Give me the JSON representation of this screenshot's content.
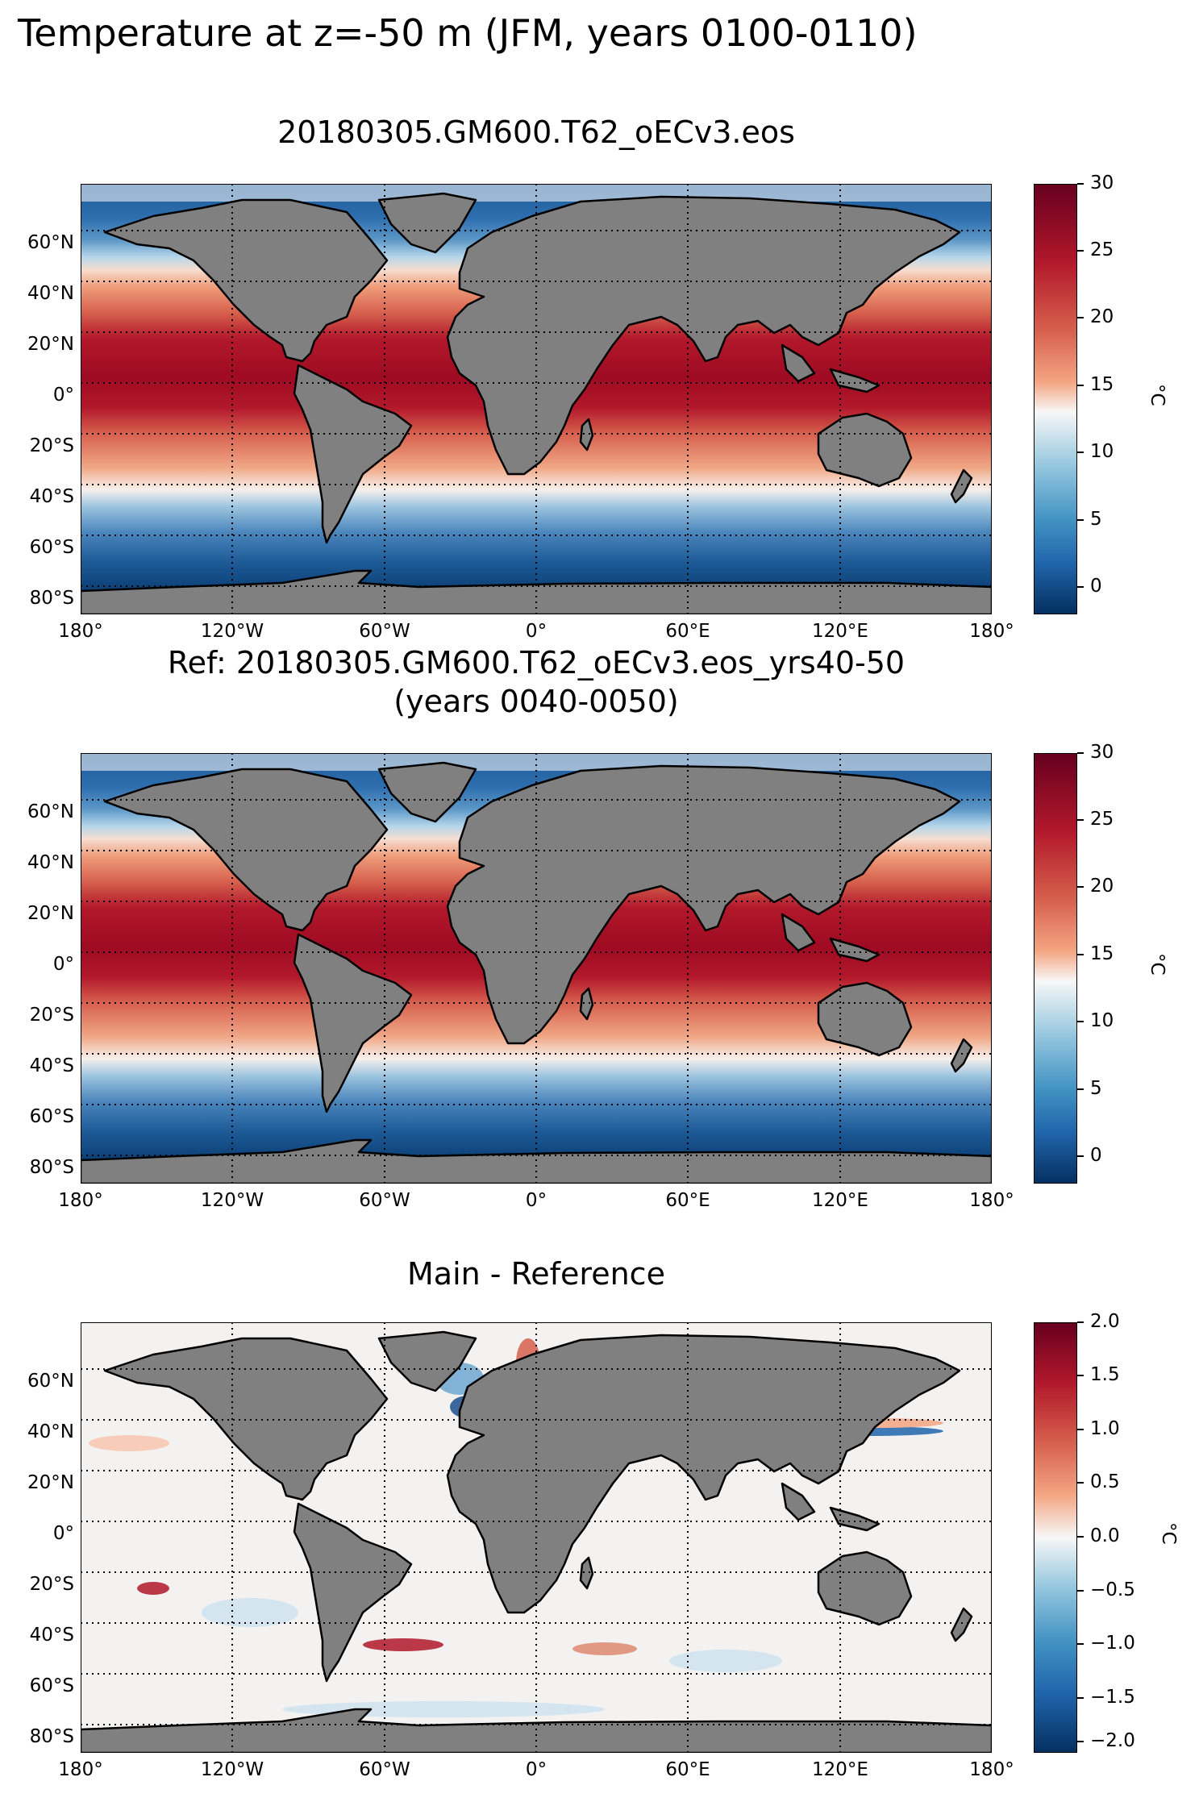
{
  "figure": {
    "suptitle": "Temperature at z=-50 m (JFM, years 0100-0110)"
  },
  "panels": [
    {
      "title": "20180305.GM600.T62_oECv3.eos",
      "colorbar": {
        "ticks": [
          "30",
          "25",
          "20",
          "15",
          "10",
          "5",
          "0"
        ],
        "range": [
          -2,
          30
        ],
        "unit": "°C",
        "colormap": "RdBu_r"
      }
    },
    {
      "title": "Ref: 20180305.GM600.T62_oECv3.eos_yrs40-50",
      "subtitle": "(years 0040-0050)",
      "colorbar": {
        "ticks": [
          "30",
          "25",
          "20",
          "15",
          "10",
          "5",
          "0"
        ],
        "range": [
          -2,
          30
        ],
        "unit": "°C",
        "colormap": "RdBu_r"
      }
    },
    {
      "title": "Main - Reference",
      "colorbar": {
        "ticks": [
          "2.0",
          "1.5",
          "1.0",
          "0.5",
          "0.0",
          "−0.5",
          "−1.0",
          "−1.5",
          "−2.0"
        ],
        "range": [
          -2,
          2
        ],
        "unit": "°C",
        "colormap": "RdBu_r"
      }
    }
  ],
  "axes": {
    "lat_labels": [
      "60°N",
      "40°N",
      "20°N",
      "0°",
      "20°S",
      "40°S",
      "60°S",
      "80°S"
    ],
    "lon_labels": [
      "180°",
      "120°W",
      "60°W",
      "0°",
      "60°E",
      "120°E",
      "180°"
    ]
  },
  "colors": {
    "land": "#808080",
    "coast": "#000000",
    "warm": "#67001f",
    "neutral": "#f7f7f7",
    "cold": "#053061"
  }
}
